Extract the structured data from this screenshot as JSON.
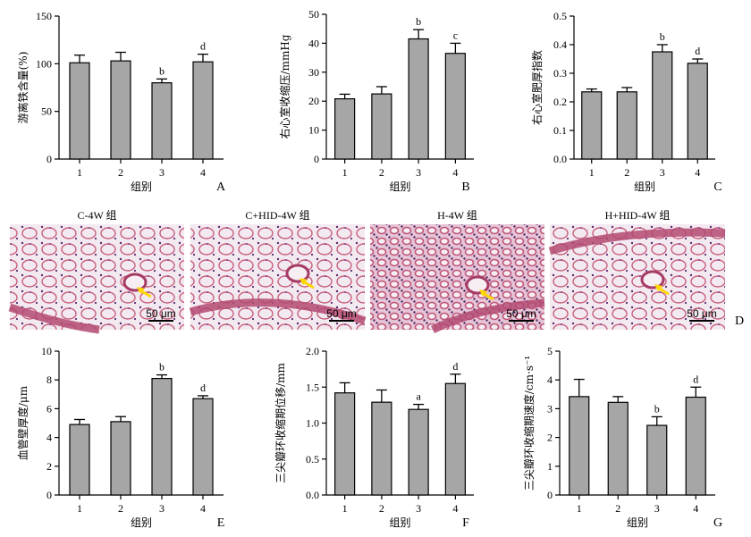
{
  "chart_data": [
    {
      "type": "bar",
      "panel": "A",
      "categories": [
        "1",
        "2",
        "3",
        "4"
      ],
      "values": [
        101,
        103,
        80,
        102
      ],
      "errors": [
        8,
        9,
        4,
        8
      ],
      "sig": [
        "",
        "",
        "b",
        "d"
      ],
      "xlabel": "组别",
      "ylabel": "游离铁含量(%)",
      "ylim": [
        0,
        150
      ],
      "yticks": [
        "0",
        "50",
        "100",
        "150"
      ]
    },
    {
      "type": "bar",
      "panel": "B",
      "categories": [
        "1",
        "2",
        "3",
        "4"
      ],
      "values": [
        20.8,
        22.5,
        41.5,
        36.5
      ],
      "errors": [
        1.6,
        2.5,
        3.2,
        3.5
      ],
      "sig": [
        "",
        "",
        "b",
        "c"
      ],
      "xlabel": "组别",
      "ylabel": "右心室收缩压/mmHg",
      "ylim": [
        0,
        50
      ],
      "yticks": [
        "0",
        "10",
        "20",
        "30",
        "40",
        "50"
      ]
    },
    {
      "type": "bar",
      "panel": "C",
      "categories": [
        "1",
        "2",
        "3",
        "4"
      ],
      "values": [
        0.235,
        0.235,
        0.375,
        0.335
      ],
      "errors": [
        0.01,
        0.015,
        0.025,
        0.015
      ],
      "sig": [
        "",
        "",
        "b",
        "d"
      ],
      "xlabel": "组别",
      "ylabel": "右心室肥厚指数",
      "ylim": [
        0,
        0.5
      ],
      "yticks": [
        "0.0",
        "0.1",
        "0.2",
        "0.3",
        "0.4",
        "0.5"
      ]
    },
    {
      "type": "bar",
      "panel": "E",
      "categories": [
        "1",
        "2",
        "3",
        "4"
      ],
      "values": [
        4.9,
        5.1,
        8.1,
        6.7
      ],
      "errors": [
        0.35,
        0.35,
        0.25,
        0.2
      ],
      "sig": [
        "",
        "",
        "b",
        "d"
      ],
      "xlabel": "组别",
      "ylabel": "血管壁厚度/μm",
      "ylim": [
        0,
        10
      ],
      "yticks": [
        "0",
        "2",
        "4",
        "6",
        "8",
        "10"
      ]
    },
    {
      "type": "bar",
      "panel": "F",
      "categories": [
        "1",
        "2",
        "3",
        "4"
      ],
      "values": [
        1.42,
        1.29,
        1.19,
        1.55
      ],
      "errors": [
        0.14,
        0.17,
        0.07,
        0.13
      ],
      "sig": [
        "",
        "",
        "a",
        "d"
      ],
      "xlabel": "组别",
      "ylabel": "三尖瓣环收缩期位移/mm",
      "ylim": [
        0,
        2.0
      ],
      "yticks": [
        "0.0",
        "0.5",
        "1.0",
        "1.5",
        "2.0"
      ]
    },
    {
      "type": "bar",
      "panel": "G",
      "categories": [
        "1",
        "2",
        "3",
        "4"
      ],
      "values": [
        3.42,
        3.22,
        2.42,
        3.4
      ],
      "errors": [
        0.6,
        0.2,
        0.3,
        0.35
      ],
      "sig": [
        "",
        "",
        "b",
        "d"
      ],
      "xlabel": "组别",
      "ylabel": "三尖瓣环收缩期速度/cm·s⁻¹",
      "ylim": [
        0,
        5
      ],
      "yticks": [
        "0",
        "1",
        "2",
        "3",
        "4",
        "5"
      ]
    }
  ],
  "histology": {
    "panel": "D",
    "images": [
      {
        "title": "C-4W 组",
        "scale": "50 μm"
      },
      {
        "title": "C+HID-4W 组",
        "scale": "50 μm"
      },
      {
        "title": "H-4W 组",
        "scale": "50 μm"
      },
      {
        "title": "H+HID-4W 组",
        "scale": "50 μm"
      }
    ]
  },
  "colors": {
    "bar_fill": "#a6a6a6",
    "tissue_bg": "#efe0ea",
    "tissue_cell": "#c8607e",
    "nuclei": "#5a2a6e",
    "arrow": "#ffd800"
  }
}
